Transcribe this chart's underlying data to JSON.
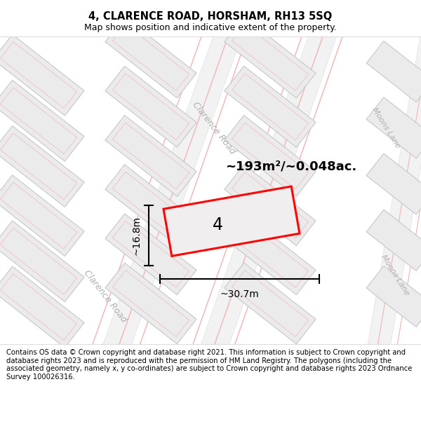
{
  "title_line1": "4, CLARENCE ROAD, HORSHAM, RH13 5SQ",
  "title_line2": "Map shows position and indicative extent of the property.",
  "footer_text": "Contains OS data © Crown copyright and database right 2021. This information is subject to Crown copyright and database rights 2023 and is reproduced with the permission of HM Land Registry. The polygons (including the associated geometry, namely x, y co-ordinates) are subject to Crown copyright and database rights 2023 Ordnance Survey 100026316.",
  "area_label": "~193m²/~0.048ac.",
  "width_label": "~30.7m",
  "height_label": "~16.8m",
  "property_number": "4",
  "map_bg": "#f7f6f6",
  "building_fill": "#ebebeb",
  "building_edge": "#c8c8c8",
  "road_line_color": "#f0b8b8",
  "property_fill": "#f0eeee",
  "property_edge": "#ff0000",
  "road_label_color": "#b0b0b0",
  "title_fontsize": 10.5,
  "subtitle_fontsize": 9,
  "footer_fontsize": 7.2,
  "area_fontsize": 13,
  "prop_num_fontsize": 17,
  "road_label_fontsize": 9,
  "dim_fontsize": 10
}
